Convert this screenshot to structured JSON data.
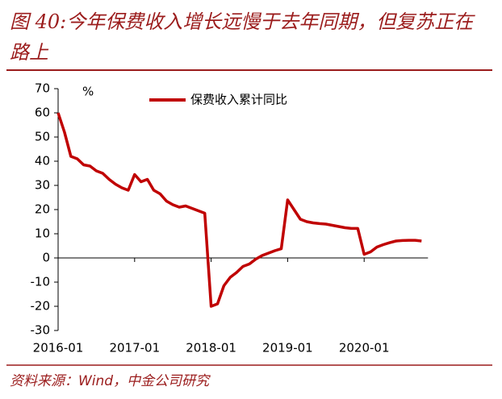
{
  "chart_data": {
    "type": "line",
    "title": "图 40:今年保费收入增长远慢于去年同期，但复苏正在路上",
    "source": "资料来源：Wind，中金公司研究",
    "y_unit": "%",
    "categories": [
      "2016-01",
      null,
      null,
      null,
      null,
      null,
      null,
      null,
      null,
      null,
      null,
      null,
      "2017-01",
      null,
      null,
      null,
      null,
      null,
      null,
      null,
      null,
      null,
      null,
      null,
      "2018-01",
      null,
      null,
      null,
      null,
      null,
      null,
      null,
      null,
      null,
      null,
      null,
      "2019-01",
      null,
      null,
      null,
      null,
      null,
      null,
      null,
      null,
      null,
      null,
      null,
      "2020-01",
      null,
      null,
      null,
      null,
      null,
      null,
      null,
      null,
      null
    ],
    "series": [
      {
        "name": "保费收入累计同比",
        "color": "#c00000",
        "values": [
          60,
          52,
          42,
          41,
          38.5,
          38,
          36,
          35,
          32.5,
          30.5,
          29,
          28,
          34.5,
          31.5,
          32.5,
          28,
          26.5,
          23.5,
          22,
          21,
          21.5,
          20.5,
          19.5,
          18.5,
          -20,
          -19,
          -11.5,
          -8,
          -6,
          -3.5,
          -2.5,
          -0.5,
          1,
          2,
          3,
          3.8,
          24,
          20,
          16,
          15,
          14.5,
          14.2,
          14,
          13.5,
          13,
          12.5,
          12.2,
          12.2,
          1.5,
          2.5,
          4.5,
          5.5,
          6.3,
          7,
          7.2,
          7.3,
          7.3,
          7
        ]
      }
    ],
    "ylim": [
      -30,
      70
    ],
    "yticks": [
      -30,
      -20,
      -10,
      0,
      10,
      20,
      30,
      40,
      50,
      60,
      70
    ],
    "legend": "top",
    "grid": false
  }
}
